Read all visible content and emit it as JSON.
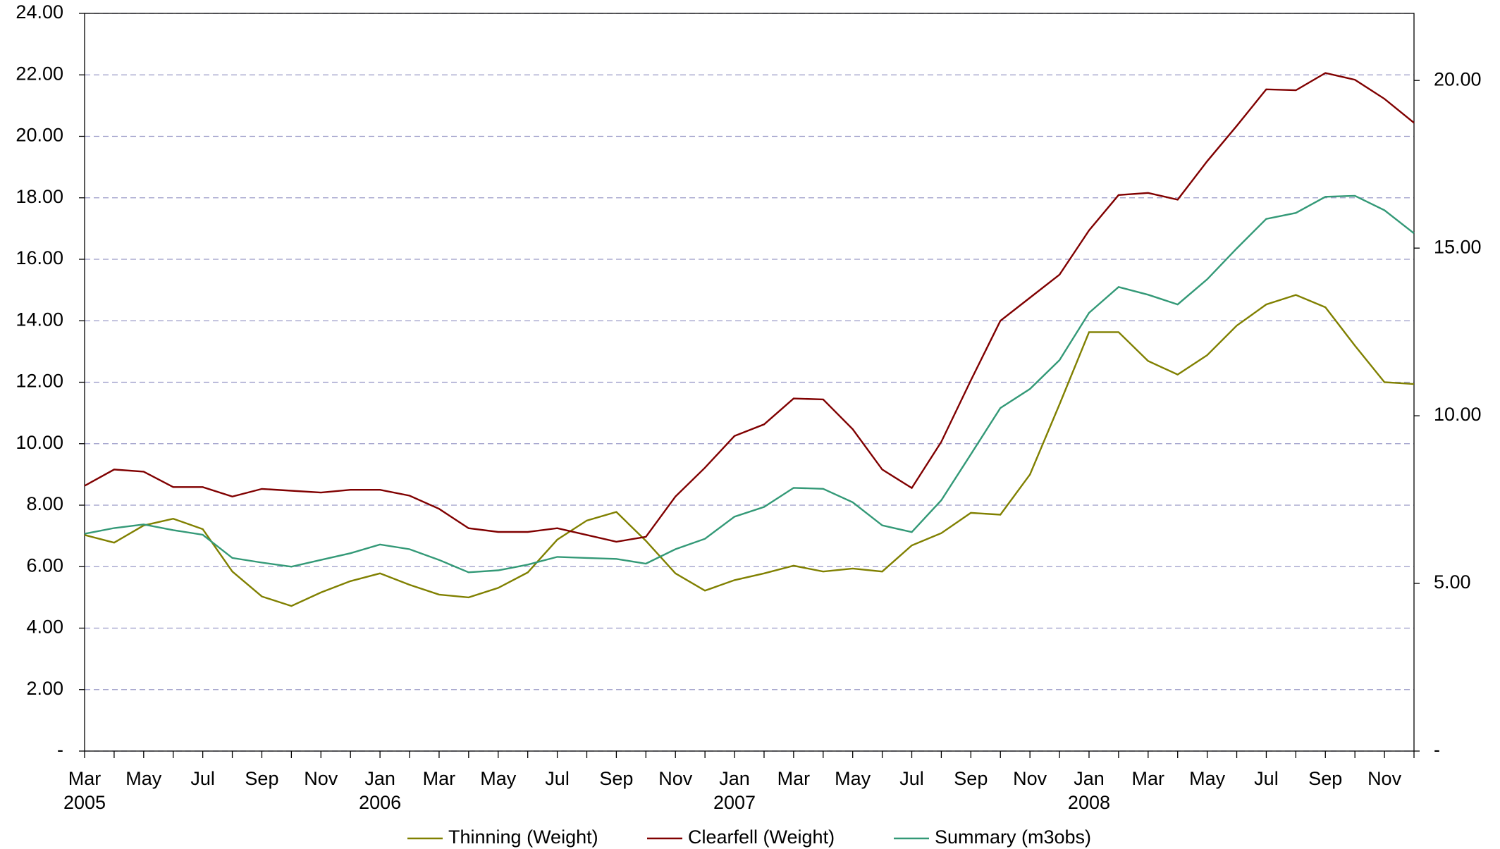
{
  "chart_data": {
    "type": "line",
    "categories": [
      "Mar\n2005",
      null,
      "May",
      null,
      "Jul",
      null,
      "Sep",
      null,
      "Nov",
      null,
      "Jan\n2006",
      null,
      "Mar",
      null,
      "May",
      null,
      "Jul",
      null,
      "Sep",
      null,
      "Nov",
      null,
      "Jan\n2007",
      null,
      "Mar",
      null,
      "May",
      null,
      "Jul",
      null,
      "Sep",
      null,
      "Nov",
      null,
      "Jan\n2008",
      null,
      "Mar",
      null,
      "May",
      null,
      "Jul",
      null,
      "Sep",
      null,
      "Nov",
      null
    ],
    "series": [
      {
        "name": "Thinning (Weight)",
        "color": "#808000",
        "values": [
          7.03,
          6.78,
          7.34,
          7.56,
          7.22,
          5.84,
          5.03,
          4.72,
          5.16,
          5.53,
          5.78,
          5.41,
          5.09,
          5.0,
          5.31,
          5.81,
          6.88,
          7.5,
          7.78,
          6.84,
          5.78,
          5.22,
          5.56,
          5.78,
          6.03,
          5.84,
          5.94,
          5.84,
          6.69,
          7.09,
          7.75,
          7.69,
          9.0,
          11.28,
          13.63,
          13.63,
          12.69,
          12.25,
          12.88,
          13.84,
          14.53,
          14.84,
          14.44,
          13.19,
          12.0,
          11.94
        ]
      },
      {
        "name": "Clearfell (Weight)",
        "color": "#800000",
        "values": [
          8.63,
          9.16,
          9.09,
          8.59,
          8.59,
          8.28,
          8.53,
          8.47,
          8.41,
          8.5,
          8.5,
          8.31,
          7.88,
          7.25,
          7.13,
          7.13,
          7.25,
          7.03,
          6.81,
          6.97,
          8.28,
          9.22,
          10.25,
          10.63,
          11.47,
          11.44,
          10.47,
          9.16,
          8.56,
          10.06,
          12.06,
          14.0,
          14.75,
          15.5,
          16.94,
          18.09,
          18.16,
          17.94,
          19.19,
          20.34,
          21.53,
          21.5,
          22.06,
          21.84,
          21.22,
          20.44
        ]
      },
      {
        "name": "Summary (m3obs)",
        "color": "#339977",
        "axis": "y2",
        "values": [
          6.48,
          6.65,
          6.76,
          6.59,
          6.45,
          5.76,
          5.62,
          5.5,
          5.7,
          5.9,
          6.16,
          6.02,
          5.7,
          5.33,
          5.39,
          5.56,
          5.79,
          5.76,
          5.73,
          5.59,
          6.02,
          6.33,
          6.99,
          7.28,
          7.85,
          7.82,
          7.42,
          6.73,
          6.53,
          7.48,
          8.85,
          10.23,
          10.8,
          11.66,
          13.07,
          13.84,
          13.61,
          13.32,
          14.07,
          14.99,
          15.87,
          16.05,
          16.53,
          16.56,
          16.13,
          15.44
        ]
      }
    ],
    "ylim": [
      0,
      24
    ],
    "yticks": [
      {
        "value": 0,
        "label": "-"
      },
      {
        "value": 2,
        "label": "2.00"
      },
      {
        "value": 4,
        "label": "4.00"
      },
      {
        "value": 6,
        "label": "6.00"
      },
      {
        "value": 8,
        "label": "8.00"
      },
      {
        "value": 10,
        "label": "10.00"
      },
      {
        "value": 12,
        "label": "12.00"
      },
      {
        "value": 14,
        "label": "14.00"
      },
      {
        "value": 16,
        "label": "16.00"
      },
      {
        "value": 18,
        "label": "18.00"
      },
      {
        "value": 20,
        "label": "20.00"
      },
      {
        "value": 22,
        "label": "22.00"
      },
      {
        "value": 24,
        "label": "24.00"
      }
    ],
    "y2lim": [
      0,
      22
    ],
    "y2ticks": [
      {
        "value": 0,
        "label": "-"
      },
      {
        "value": 5,
        "label": "5.00"
      },
      {
        "value": 10,
        "label": "10.00"
      },
      {
        "value": 15,
        "label": "15.00"
      },
      {
        "value": 20,
        "label": "20.00"
      }
    ],
    "grid": true,
    "legend": "bottom"
  }
}
